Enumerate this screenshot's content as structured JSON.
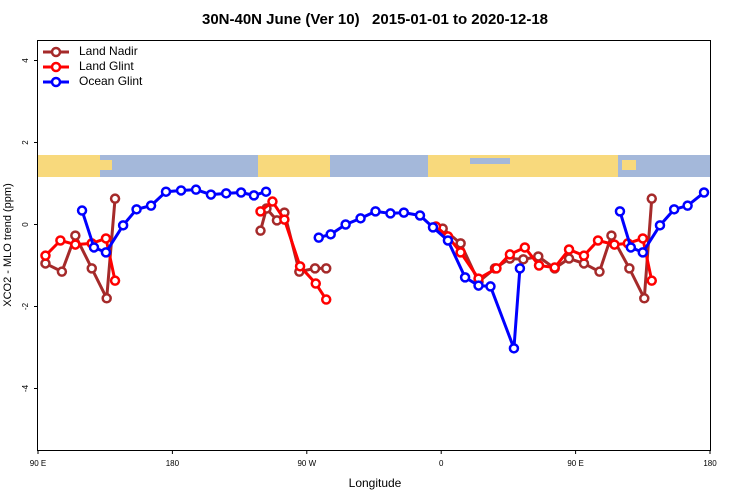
{
  "chart_data": {
    "type": "line",
    "title": "30N-40N June (Ver 10)   2015-01-01 to 2020-12-18",
    "x_label": "Longitude",
    "y_label": "XCO2 - MLO trend (ppm)",
    "xlim": [
      90,
      540
    ],
    "ylim": [
      -5.5,
      4.5
    ],
    "xticks": [
      {
        "value": 90,
        "label": "90 E"
      },
      180,
      {
        "value": 270,
        "label": "90 W"
      },
      {
        "value": 360,
        "label": "0"
      },
      {
        "value": 450,
        "label": "90 E"
      },
      {
        "value": 540,
        "label": "180"
      }
    ],
    "yticks": [
      4,
      2,
      0,
      -2,
      -4
    ],
    "legend": "topleft",
    "series": [
      {
        "name": "Land Nadir",
        "color": "#a52a2a",
        "x": [
          95,
          106,
          115,
          126,
          136,
          141.6,
          null,
          239,
          243,
          250,
          255,
          265,
          275.5,
          283,
          null,
          361,
          373,
          385,
          396,
          406,
          415,
          425,
          436,
          445.6,
          455.6,
          466,
          474,
          486,
          496,
          501
        ],
        "values": [
          -0.95,
          -1.15,
          -0.27,
          -1.07,
          -1.8,
          0.63,
          null,
          -0.15,
          0.39,
          0.1,
          0.29,
          -1.15,
          -1.07,
          -1.07,
          null,
          -0.1,
          -0.46,
          -1.4,
          -1.07,
          -0.83,
          -0.85,
          -0.78,
          -1.07,
          -0.83,
          -0.95,
          -1.15,
          -0.27,
          -1.07,
          -1.8,
          0.63
        ]
      },
      {
        "name": "Land Glint",
        "color": "#ff0000",
        "x": [
          95,
          105,
          115,
          126,
          135.5,
          141.6,
          null,
          239,
          247,
          255,
          265.5,
          276,
          283,
          null,
          356.5,
          364.5,
          373,
          385,
          397,
          406,
          416,
          425.5,
          436,
          445.6,
          455.6,
          465,
          476,
          485,
          495,
          501
        ],
        "values": [
          -0.76,
          -0.39,
          -0.49,
          -0.46,
          -0.34,
          -1.37,
          null,
          0.32,
          0.56,
          0.12,
          -1.02,
          -1.44,
          -1.83,
          null,
          -0.05,
          -0.29,
          -0.68,
          -1.32,
          -1.07,
          -0.73,
          -0.56,
          -1.0,
          -1.05,
          -0.61,
          -0.76,
          -0.39,
          -0.49,
          -0.46,
          -0.34,
          -1.37
        ]
      },
      {
        "name": "Ocean Glint",
        "color": "#0000ff",
        "x": [
          119.5,
          127.5,
          135.5,
          147,
          156,
          165.7,
          175.7,
          185.8,
          195.8,
          205.8,
          216,
          226,
          234.6,
          242.7,
          null,
          278,
          286,
          296,
          306,
          316,
          326,
          335,
          345.8,
          354.5,
          364.5,
          376,
          385,
          393,
          408.7,
          412.7,
          null,
          479.7,
          487,
          495,
          506.5,
          516,
          525,
          536
        ],
        "values": [
          0.34,
          -0.56,
          -0.68,
          -0.02,
          0.37,
          0.46,
          0.8,
          0.83,
          0.85,
          0.73,
          0.76,
          0.78,
          0.71,
          0.8,
          null,
          -0.32,
          -0.24,
          0,
          0.15,
          0.32,
          0.27,
          0.29,
          0.22,
          -0.07,
          -0.39,
          -1.29,
          -1.49,
          -1.51,
          -3.02,
          -1.07,
          null,
          0.32,
          -0.56,
          -0.68,
          -0.02,
          0.37,
          0.46,
          0.78
        ]
      }
    ]
  }
}
